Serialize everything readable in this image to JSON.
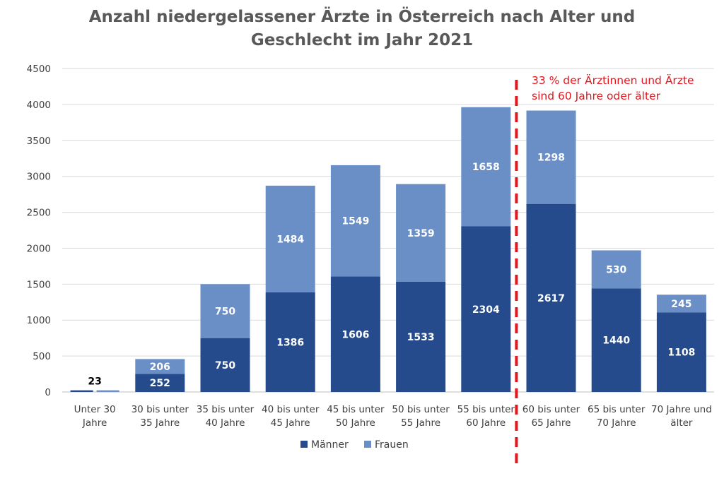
{
  "chart_data": {
    "type": "bar",
    "stacked": true,
    "title_lines": [
      "Anzahl niedergelassener Ärzte in Österreich nach Alter und",
      "Geschlecht im Jahr 2021"
    ],
    "categories": [
      [
        "Unter 30",
        "Jahre"
      ],
      [
        "30 bis unter",
        "35 Jahre"
      ],
      [
        "35 bis unter",
        "40 Jahre"
      ],
      [
        "40 bis unter",
        "45 Jahre"
      ],
      [
        "45 bis unter",
        "50 Jahre"
      ],
      [
        "50 bis unter",
        "55 Jahre"
      ],
      [
        "55 bis unter",
        "60 Jahre"
      ],
      [
        "60 bis unter",
        "65 Jahre"
      ],
      [
        "65 bis unter",
        "70 Jahre"
      ],
      [
        "70 Jahre und",
        "älter"
      ]
    ],
    "series": [
      {
        "name": "Männer",
        "color": "#264b8c",
        "values": [
          23,
          252,
          750,
          1386,
          1606,
          1533,
          2304,
          2617,
          1440,
          1108
        ]
      },
      {
        "name": "Frauen",
        "color": "#6a8fc7",
        "values": [
          23,
          206,
          750,
          1484,
          1549,
          1359,
          1658,
          1298,
          530,
          245
        ]
      }
    ],
    "ylim": [
      0,
      4500
    ],
    "yticks": [
      0,
      500,
      1000,
      1500,
      2000,
      2500,
      3000,
      3500,
      4000,
      4500
    ],
    "grid": true,
    "legend_position": "bottom",
    "annotation": {
      "lines": [
        "33 % der Ärztinnen und Ärzte",
        "sind 60 Jahre oder älter"
      ],
      "color": "#e8141c",
      "divider_between": [
        "55 bis unter 60 Jahre",
        "60 bis unter 65 Jahre"
      ]
    },
    "special_layout_note_first_category": "side-by-side"
  }
}
